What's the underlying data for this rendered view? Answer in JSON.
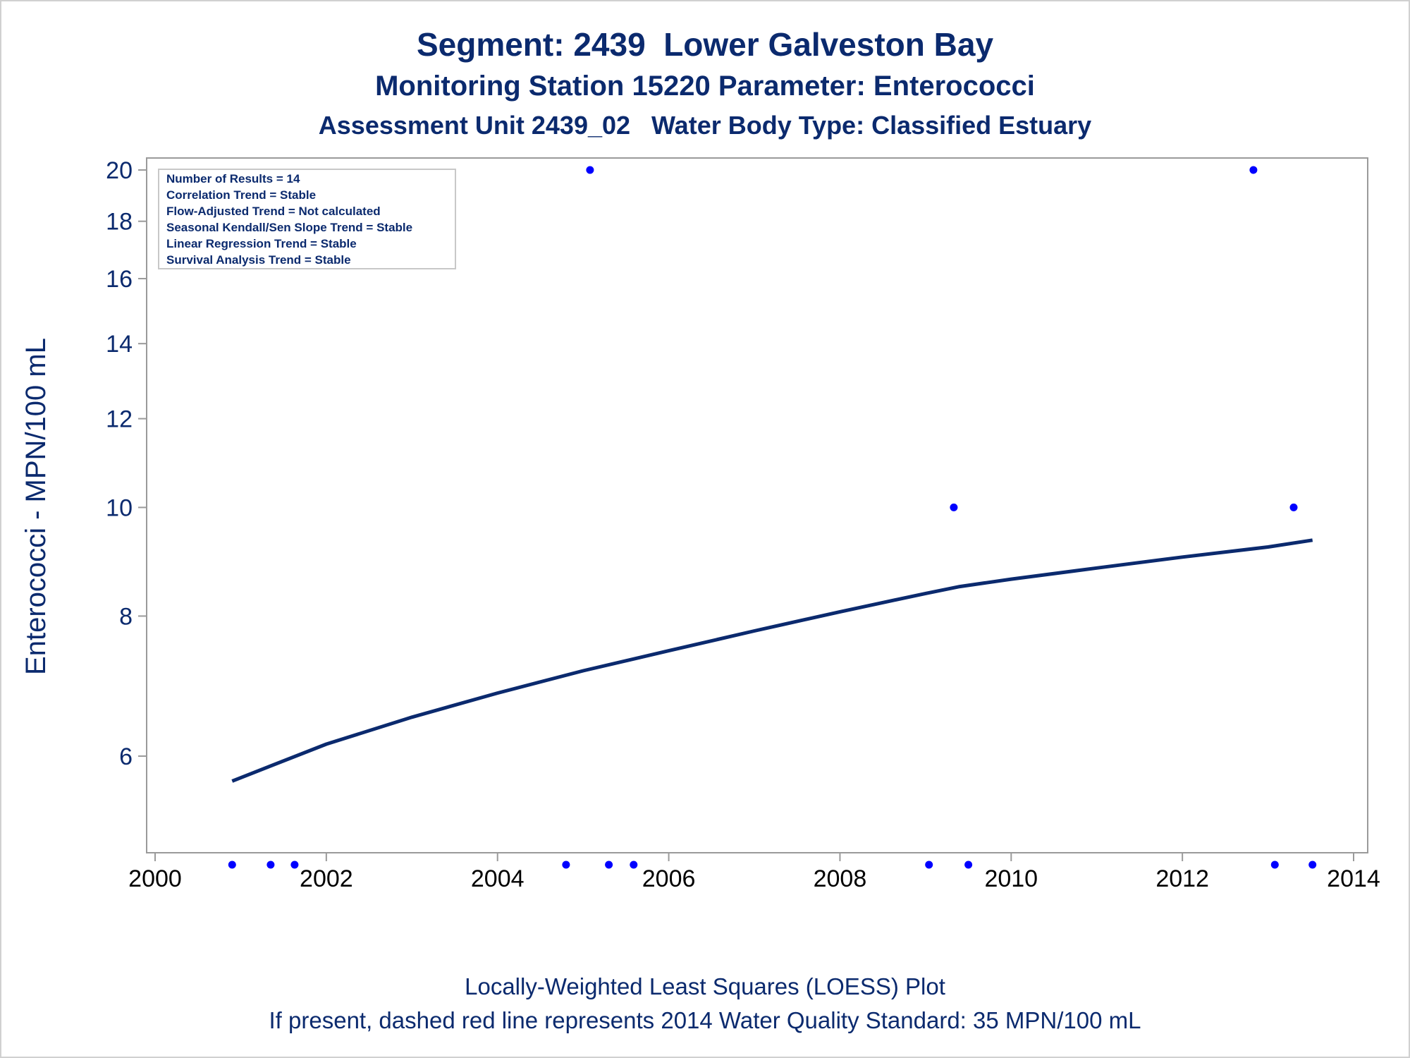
{
  "titles": {
    "line1": "Segment: 2439  Lower Galveston Bay",
    "line2": "Monitoring Station 15220 Parameter: Enterococci",
    "line3": "Assessment Unit 2439_02   Water Body Type: Classified Estuary"
  },
  "footnotes": {
    "line1": "Locally-Weighted Least Squares (LOESS) Plot",
    "line2": "If present, dashed red line represents 2014 Water Quality Standard: 35 MPN/100 mL"
  },
  "inset_box": [
    "Number of Results = 14",
    "Correlation Trend = Stable",
    "Flow-Adjusted Trend = Not calculated",
    "Seasonal Kendall/Sen Slope Trend = Stable",
    "Linear Regression Trend = Stable",
    "Survival Analysis Trend = Stable"
  ],
  "colors": {
    "text": "#0b2a6e",
    "points": "#0000ff",
    "loess_line": "#0b2a6e",
    "axis_frame": "#9a9a9a"
  },
  "chart_data": {
    "type": "scatter",
    "title": "Segment: 2439  Lower Galveston Bay",
    "xlabel": "",
    "ylabel": "Enterococci - MPN/100 mL",
    "xlim": [
      2000,
      2014
    ],
    "ylim": [
      4.5,
      20.5
    ],
    "yscale": "log",
    "x_ticks": [
      2000,
      2002,
      2004,
      2006,
      2008,
      2010,
      2012,
      2014
    ],
    "y_ticks": [
      6,
      8,
      10,
      12,
      14,
      16,
      18,
      20
    ],
    "grid": false,
    "legend": "none",
    "points": [
      {
        "x": 2000.9,
        "y": 4.8
      },
      {
        "x": 2001.35,
        "y": 4.8
      },
      {
        "x": 2001.63,
        "y": 4.8
      },
      {
        "x": 2004.8,
        "y": 4.8
      },
      {
        "x": 2005.08,
        "y": 20
      },
      {
        "x": 2005.3,
        "y": 4.8
      },
      {
        "x": 2005.59,
        "y": 4.8
      },
      {
        "x": 2009.04,
        "y": 4.8
      },
      {
        "x": 2009.33,
        "y": 10
      },
      {
        "x": 2009.5,
        "y": 4.8
      },
      {
        "x": 2012.83,
        "y": 20
      },
      {
        "x": 2013.08,
        "y": 4.8
      },
      {
        "x": 2013.3,
        "y": 10
      },
      {
        "x": 2013.52,
        "y": 4.8
      }
    ],
    "loess_curve": [
      {
        "x": 2000.9,
        "y": 5.7
      },
      {
        "x": 2002.0,
        "y": 6.15
      },
      {
        "x": 2003.0,
        "y": 6.5
      },
      {
        "x": 2004.0,
        "y": 6.83
      },
      {
        "x": 2005.0,
        "y": 7.15
      },
      {
        "x": 2006.0,
        "y": 7.45
      },
      {
        "x": 2007.0,
        "y": 7.76
      },
      {
        "x": 2008.0,
        "y": 8.07
      },
      {
        "x": 2009.0,
        "y": 8.38
      },
      {
        "x": 2009.4,
        "y": 8.5
      },
      {
        "x": 2010.0,
        "y": 8.63
      },
      {
        "x": 2011.0,
        "y": 8.83
      },
      {
        "x": 2012.0,
        "y": 9.03
      },
      {
        "x": 2013.0,
        "y": 9.22
      },
      {
        "x": 2013.52,
        "y": 9.35
      }
    ]
  }
}
